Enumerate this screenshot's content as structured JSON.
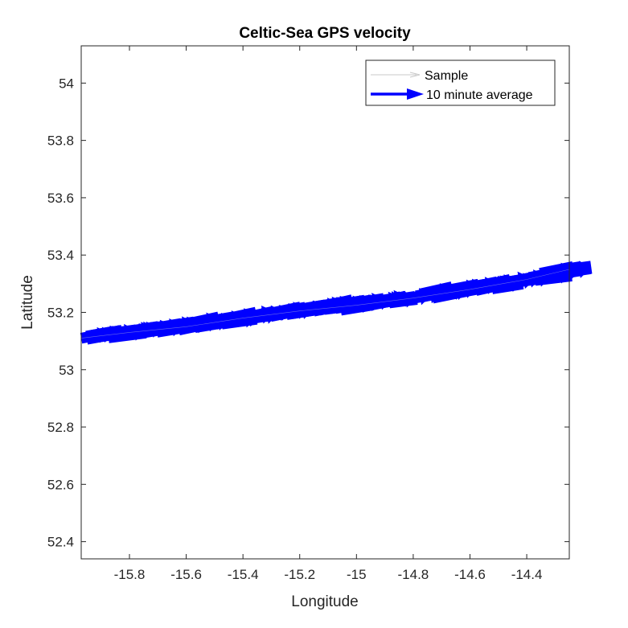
{
  "chart_data": {
    "type": "quiver",
    "title": "Celtic-Sea GPS velocity",
    "xlabel": "Longitude",
    "ylabel": "Latitude",
    "xlim": [
      -15.97,
      -14.25
    ],
    "ylim": [
      52.34,
      54.13
    ],
    "xticks": [
      -15.8,
      -15.6,
      -15.4,
      -15.2,
      -15,
      -14.8,
      -14.6,
      -14.4
    ],
    "xtick_labels": [
      "-15.8",
      "-15.6",
      "-15.4",
      "-15.2",
      "-15",
      "-14.8",
      "-14.6",
      "-14.4"
    ],
    "yticks": [
      52.4,
      52.6,
      52.8,
      53,
      53.2,
      53.4,
      53.6,
      53.8,
      54
    ],
    "ytick_labels": [
      "52.4",
      "52.6",
      "52.8",
      "53",
      "53.2",
      "53.4",
      "53.6",
      "53.8",
      "54"
    ],
    "legend": {
      "location": "top-right",
      "entries": [
        "Sample",
        "10 minute average"
      ]
    },
    "series": [
      {
        "name": "Sample",
        "color": "#d0d0d0",
        "track": {
          "lon": [
            -15.97,
            -15.8,
            -15.6,
            -15.4,
            -15.2,
            -15.0,
            -14.8,
            -14.6,
            -14.4,
            -14.25
          ],
          "lat": [
            53.11,
            53.13,
            53.15,
            53.18,
            53.205,
            53.225,
            53.25,
            53.28,
            53.315,
            53.35
          ]
        }
      },
      {
        "name": "10 minute average",
        "color": "#0000ff",
        "track": {
          "lon": [
            -15.97,
            -15.8,
            -15.6,
            -15.4,
            -15.2,
            -15.0,
            -14.8,
            -14.6,
            -14.4,
            -14.25
          ],
          "lat": [
            53.11,
            53.13,
            53.15,
            53.18,
            53.205,
            53.225,
            53.25,
            53.28,
            53.315,
            53.35
          ]
        },
        "arrow_count": 90,
        "arrow_direction_deg": 10
      }
    ],
    "grid": false,
    "box": true
  }
}
